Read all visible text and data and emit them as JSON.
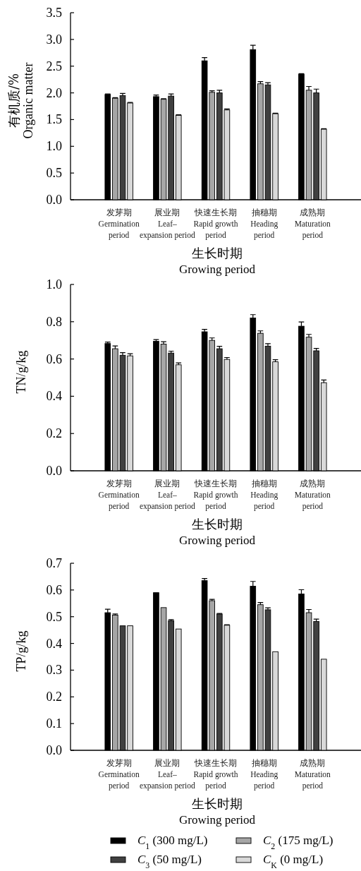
{
  "chart_data": [
    {
      "type": "bar",
      "ylabel": "有机质/%\nOrganic matter",
      "xlabel": "生长时期\nGrowing period",
      "categories": [
        "发芽期\nGermination\nperiod",
        "展业期\nLeaf–\nexpansion period",
        "快速生长期\nRapid growth\nperiod",
        "抽穗期\nHeading\nperiod",
        "成熟期\nMaturation\nperiod"
      ],
      "ylim": [
        0,
        3.5
      ],
      "yticks": [
        {
          "value": 0,
          "label": "0.0"
        },
        {
          "value": 0.5,
          "label": "0.5"
        },
        {
          "value": 1,
          "label": "1.0"
        },
        {
          "value": 1.5,
          "label": "1.5"
        },
        {
          "value": 2,
          "label": "2.0"
        },
        {
          "value": 2.5,
          "label": "2.5"
        },
        {
          "value": 3,
          "label": "3.0"
        },
        {
          "value": 3.5,
          "label": "3.5"
        }
      ],
      "series": [
        {
          "color": "#000000",
          "values": [
            1.97,
            1.93,
            2.6,
            2.81,
            2.35
          ],
          "errors": [
            0.01,
            0.03,
            0.06,
            0.08,
            0.01
          ]
        },
        {
          "color": "#a6a6a6",
          "values": [
            1.9,
            1.88,
            2.01,
            2.17,
            2.05
          ],
          "errors": [
            0.01,
            0.01,
            0.03,
            0.04,
            0.07
          ]
        },
        {
          "color": "#404040",
          "values": [
            1.95,
            1.94,
            2.0,
            2.15,
            2.0
          ],
          "errors": [
            0.04,
            0.04,
            0.05,
            0.04,
            0.07
          ]
        },
        {
          "color": "#d9d9d9",
          "values": [
            1.81,
            1.58,
            1.68,
            1.61,
            1.32
          ],
          "errors": [
            0.01,
            0.01,
            0.02,
            0.01,
            0.01
          ]
        }
      ]
    },
    {
      "type": "bar",
      "ylabel": "TN/g/kg",
      "xlabel": "生长时期\nGrowing period",
      "categories": [
        "发芽期\nGermination\nperiod",
        "展业期\nLeaf–\nexpansion period",
        "快速生长期\nRapid growth\nperiod",
        "抽穗期\nHeading\nperiod",
        "成熟期\nMaturation\nperiod"
      ],
      "ylim": [
        0,
        1
      ],
      "yticks": [
        {
          "value": 0,
          "label": "0.0"
        },
        {
          "value": 0.2,
          "label": "0.2"
        },
        {
          "value": 0.4,
          "label": "0.4"
        },
        {
          "value": 0.6,
          "label": "0.6"
        },
        {
          "value": 0.8,
          "label": "0.8"
        },
        {
          "value": 1,
          "label": "1.0"
        }
      ],
      "series": [
        {
          "color": "#000000",
          "values": [
            0.683,
            0.695,
            0.746,
            0.82,
            0.776
          ],
          "errors": [
            0.008,
            0.009,
            0.013,
            0.018,
            0.023
          ]
        },
        {
          "color": "#a6a6a6",
          "values": [
            0.655,
            0.68,
            0.7,
            0.738,
            0.717
          ],
          "errors": [
            0.015,
            0.013,
            0.013,
            0.013,
            0.015
          ]
        },
        {
          "color": "#404040",
          "values": [
            0.62,
            0.632,
            0.655,
            0.669,
            0.644
          ],
          "errors": [
            0.014,
            0.01,
            0.013,
            0.013,
            0.013
          ]
        },
        {
          "color": "#d9d9d9",
          "values": [
            0.617,
            0.569,
            0.598,
            0.585,
            0.473
          ],
          "errors": [
            0.011,
            0.01,
            0.01,
            0.011,
            0.014
          ]
        }
      ]
    },
    {
      "type": "bar",
      "ylabel": "TP/g/kg",
      "xlabel": "生长时期\nGrowing period",
      "categories": [
        "发芽期\nGermination\nperiod",
        "展业期\nLeaf–\nexpansion period",
        "快速生长期\nRapid growth\nperiod",
        "抽穗期\nHeading\nperiod",
        "成熟期\nMaturation\nperiod"
      ],
      "ylim": [
        0,
        0.7
      ],
      "yticks": [
        {
          "value": 0,
          "label": "0.0"
        },
        {
          "value": 0.1,
          "label": "0.1"
        },
        {
          "value": 0.2,
          "label": "0.2"
        },
        {
          "value": 0.3,
          "label": "0.3"
        },
        {
          "value": 0.4,
          "label": "0.4"
        },
        {
          "value": 0.5,
          "label": "0.5"
        },
        {
          "value": 0.6,
          "label": "0.6"
        },
        {
          "value": 0.7,
          "label": "0.7"
        }
      ],
      "legend": "bottom",
      "series": [
        {
          "name": "*C*$_{1}$ (300 mg/L)",
          "color": "#000000",
          "values": [
            0.515,
            0.59,
            0.635,
            0.614,
            0.585
          ],
          "errors": [
            0.013,
            null,
            0.008,
            0.018,
            0.016
          ]
        },
        {
          "name": "*C*$_{2}$ (175 mg/L)",
          "color": "#a6a6a6",
          "values": [
            0.506,
            0.534,
            0.56,
            0.545,
            0.515
          ],
          "errors": [
            0.004,
            null,
            0.005,
            0.008,
            0.012
          ]
        },
        {
          "name": "*C*$_{3}$ (50 mg/L)",
          "color": "#404040",
          "values": [
            0.466,
            0.485,
            0.51,
            0.526,
            0.482
          ],
          "errors": [
            null,
            0.004,
            0.002,
            0.007,
            0.009
          ]
        },
        {
          "name": "*C*$_{K}$ (0 mg/L)",
          "color": "#d9d9d9",
          "values": [
            0.466,
            0.454,
            0.468,
            0.369,
            0.341
          ],
          "errors": [
            null,
            null,
            0.002,
            null,
            null
          ]
        }
      ]
    }
  ]
}
